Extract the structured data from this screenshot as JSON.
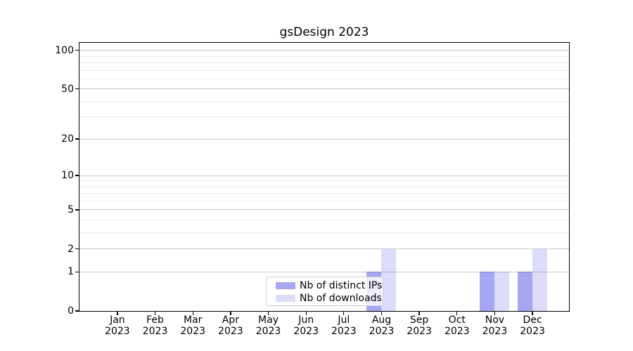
{
  "title": "gsDesign 2023",
  "chart_data": {
    "type": "bar",
    "title": "gsDesign 2023",
    "categories": [
      "Jan 2023",
      "Feb 2023",
      "Mar 2023",
      "Apr 2023",
      "May 2023",
      "Jun 2023",
      "Jul 2023",
      "Aug 2023",
      "Sep 2023",
      "Oct 2023",
      "Nov 2023",
      "Dec 2023"
    ],
    "series": [
      {
        "name": "Nb of distinct IPs",
        "color": "#a6a6f2",
        "values": [
          0,
          0,
          0,
          0,
          0,
          0,
          0,
          1,
          0,
          0,
          1,
          1
        ]
      },
      {
        "name": "Nb of downloads",
        "color": "#dcdcf8",
        "values": [
          0,
          0,
          0,
          0,
          0,
          0,
          0,
          2,
          0,
          0,
          1,
          2
        ]
      }
    ],
    "xlabel": "",
    "ylabel": "",
    "y_scale": "log1p",
    "y_major_ticks": [
      0,
      1,
      2,
      5,
      10,
      20,
      50,
      100
    ],
    "y_minor_gridlines": [
      3,
      4,
      6,
      7,
      8,
      9,
      30,
      40,
      60,
      70,
      80,
      90
    ],
    "ylim": [
      0,
      115
    ],
    "grid": "horizontal",
    "legend": {
      "position": "inside-bottom-center",
      "items": [
        "Nb of distinct IPs",
        "Nb of downloads"
      ]
    }
  },
  "colors": {
    "background": "#ffffff",
    "bar_distinct_ips": "#a6a6f2",
    "bar_downloads": "#dcdcf8",
    "major_gridline": "#c8c8c8",
    "minor_gridline": "#eaeaea",
    "axis": "#000000",
    "legend_border": "#cccccc",
    "legend_background": "rgba(255,255,255,0.8)"
  }
}
